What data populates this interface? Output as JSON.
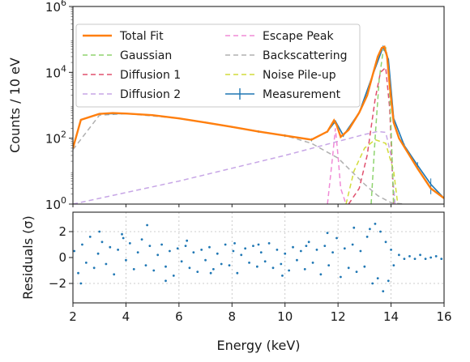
{
  "chart_data": [
    {
      "type": "line",
      "panel": "spectrum",
      "title": "",
      "xlabel": "Energy (keV)",
      "ylabel": "Counts / 10 eV",
      "xlim": [
        2,
        16
      ],
      "ylim": [
        1,
        1000000
      ],
      "yscale": "log",
      "x_ticks": [
        2,
        4,
        6,
        8,
        10,
        12,
        14,
        16
      ],
      "x_tick_labels": [
        "2",
        "4",
        "6",
        "8",
        "10",
        "12",
        "14",
        "16"
      ],
      "y_ticks": [
        1,
        100,
        10000,
        1000000
      ],
      "y_tick_labels": [
        "10^0",
        "10^2",
        "10^4",
        "10^6"
      ],
      "legend_position": "top-left",
      "series": [
        {
          "name": "Total Fit",
          "color": "#ff7f0e",
          "style": "solid",
          "x": [
            2.0,
            2.3,
            3.0,
            3.5,
            4.0,
            5.0,
            6.0,
            7.0,
            8.0,
            9.0,
            10.0,
            11.0,
            11.6,
            11.85,
            11.95,
            12.1,
            12.4,
            12.8,
            13.1,
            13.3,
            13.5,
            13.65,
            13.75,
            13.85,
            13.95,
            14.1,
            14.3,
            14.6,
            15.0,
            15.5,
            16.0
          ],
          "y": [
            50,
            360,
            550,
            580,
            560,
            500,
            400,
            300,
            220,
            160,
            120,
            90,
            160,
            350,
            250,
            110,
            180,
            600,
            2000,
            8000,
            30000,
            55000,
            60000,
            30000,
            4000,
            300,
            100,
            40,
            12,
            3,
            1.5
          ]
        },
        {
          "name": "Gaussian",
          "color": "#8fd46f",
          "style": "dashed",
          "x": [
            13.25,
            13.4,
            13.55,
            13.7,
            13.8,
            13.9,
            14.0,
            14.1
          ],
          "y": [
            1,
            100,
            6000,
            45000,
            55000,
            20000,
            200,
            1
          ]
        },
        {
          "name": "Diffusion 1",
          "color": "#e0506e",
          "style": "dashed",
          "x": [
            12.4,
            12.8,
            13.1,
            13.4,
            13.6,
            13.8,
            13.95,
            14.1
          ],
          "y": [
            1,
            3,
            30,
            1500,
            10000,
            14000,
            800,
            1
          ]
        },
        {
          "name": "Diffusion 2",
          "color": "#c7a6e6",
          "style": "dashed",
          "x": [
            2.0,
            6.0,
            10.0,
            12.0,
            13.0,
            13.5,
            13.8,
            14.0,
            14.15
          ],
          "y": [
            1,
            5,
            30,
            80,
            130,
            160,
            150,
            30,
            1
          ]
        },
        {
          "name": "Escape Peak",
          "color": "#f08bd6",
          "style": "dashed",
          "x": [
            11.6,
            11.8,
            11.9,
            12.0,
            12.1,
            12.3
          ],
          "y": [
            1,
            30,
            200,
            30,
            3,
            1
          ]
        },
        {
          "name": "Backscattering",
          "color": "#b0b0b0",
          "style": "dashed",
          "x": [
            2.0,
            3.0,
            4.0,
            6.0,
            8.0,
            10.0,
            11.0,
            12.0,
            12.5,
            13.0,
            13.5,
            14.0,
            14.5
          ],
          "y": [
            45,
            500,
            560,
            400,
            220,
            120,
            70,
            25,
            10,
            4,
            1.8,
            1.1,
            1
          ]
        },
        {
          "name": "Noise Pile-up",
          "color": "#d2dc3c",
          "style": "dashed",
          "x": [
            12.3,
            12.6,
            13.0,
            13.4,
            13.8,
            14.1,
            14.25
          ],
          "y": [
            1,
            10,
            50,
            90,
            70,
            10,
            1
          ]
        },
        {
          "name": "Measurement",
          "color": "#1f77b4",
          "style": "errorbar",
          "x": [
            2.0,
            2.3,
            3.0,
            4.0,
            5.0,
            6.0,
            7.0,
            8.0,
            9.0,
            10.0,
            11.0,
            11.6,
            11.9,
            12.2,
            12.8,
            13.3,
            13.7,
            13.9,
            14.1,
            14.5,
            15.0,
            15.5,
            16.0
          ],
          "y": [
            50,
            360,
            550,
            560,
            500,
            400,
            300,
            220,
            160,
            120,
            90,
            160,
            330,
            120,
            600,
            8000,
            60000,
            25000,
            400,
            60,
            15,
            4,
            1.5
          ]
        }
      ]
    },
    {
      "type": "scatter",
      "panel": "residuals",
      "title": "",
      "xlabel": "Energy (keV)",
      "ylabel": "Residuals (σ)",
      "xlim": [
        2,
        16
      ],
      "ylim": [
        -3.5,
        3.5
      ],
      "x_ticks": [
        2,
        4,
        6,
        8,
        10,
        12,
        14,
        16
      ],
      "x_tick_labels": [
        "2",
        "4",
        "6",
        "8",
        "10",
        "12",
        "14",
        "16"
      ],
      "y_ticks": [
        -2,
        0,
        2
      ],
      "y_tick_labels": [
        "−2",
        "0",
        "2"
      ],
      "grid": true,
      "series": [
        {
          "name": "Residuals",
          "color": "#1f77b4",
          "x": [
            2.05,
            2.2,
            2.35,
            2.5,
            2.65,
            2.8,
            2.95,
            3.1,
            3.25,
            3.4,
            3.55,
            3.7,
            3.85,
            4.0,
            4.15,
            4.3,
            4.45,
            4.6,
            4.75,
            4.9,
            5.05,
            5.2,
            5.35,
            5.5,
            5.65,
            5.8,
            5.95,
            6.1,
            6.25,
            6.4,
            6.55,
            6.7,
            6.85,
            7.0,
            7.15,
            7.3,
            7.45,
            7.6,
            7.75,
            7.9,
            8.05,
            8.2,
            8.35,
            8.5,
            8.65,
            8.8,
            8.95,
            9.1,
            9.25,
            9.4,
            9.55,
            9.7,
            9.85,
            10.0,
            10.15,
            10.3,
            10.45,
            10.6,
            10.75,
            10.9,
            11.05,
            11.2,
            11.35,
            11.5,
            11.65,
            11.8,
            11.95,
            12.1,
            12.25,
            12.4,
            12.55,
            12.7,
            12.85,
            13.0,
            13.1,
            13.2,
            13.3,
            13.4,
            13.5,
            13.6,
            13.7,
            13.8,
            13.9,
            14.0,
            14.1,
            14.3,
            14.5,
            14.7,
            14.9,
            15.1,
            15.3,
            15.5,
            15.7,
            15.9,
            2.3,
            3.0,
            3.9,
            4.8,
            5.5,
            6.3,
            7.2,
            8.1,
            9.0,
            9.9,
            10.8,
            11.6,
            12.6
          ],
          "y": [
            0.5,
            -1.2,
            1.0,
            -0.4,
            1.6,
            -0.8,
            0.3,
            1.2,
            -0.5,
            0.8,
            -1.3,
            0.6,
            1.8,
            -0.2,
            1.1,
            -0.9,
            0.4,
            1.4,
            -0.6,
            0.9,
            -1.0,
            0.2,
            1.0,
            -0.7,
            0.5,
            -1.4,
            0.7,
            -0.3,
            0.9,
            -0.8,
            0.4,
            -1.1,
            0.6,
            -0.2,
            0.8,
            -0.9,
            0.3,
            -0.5,
            1.0,
            -0.6,
            0.5,
            -1.2,
            0.2,
            0.7,
            -0.4,
            0.9,
            -0.7,
            0.4,
            -0.3,
            1.1,
            -0.8,
            0.6,
            -0.5,
            0.3,
            -1.0,
            0.8,
            -0.2,
            0.5,
            -0.9,
            1.2,
            -0.4,
            0.6,
            -1.3,
            0.9,
            -0.6,
            0.4,
            1.5,
            -1.5,
            0.7,
            -0.8,
            1.0,
            -1.1,
            0.5,
            -0.7,
            1.6,
            2.2,
            -2.0,
            2.6,
            -1.6,
            2.0,
            -2.6,
            1.2,
            -1.8,
            0.6,
            -0.6,
            0.2,
            -0.1,
            0.1,
            -0.1,
            0.2,
            -0.1,
            0.0,
            0.1,
            -0.1,
            -2.0,
            2.0,
            1.5,
            2.5,
            -1.8,
            1.3,
            -1.2,
            1.1,
            1.0,
            -1.4,
            0.9,
            1.9,
            2.3
          ]
        }
      ]
    }
  ]
}
